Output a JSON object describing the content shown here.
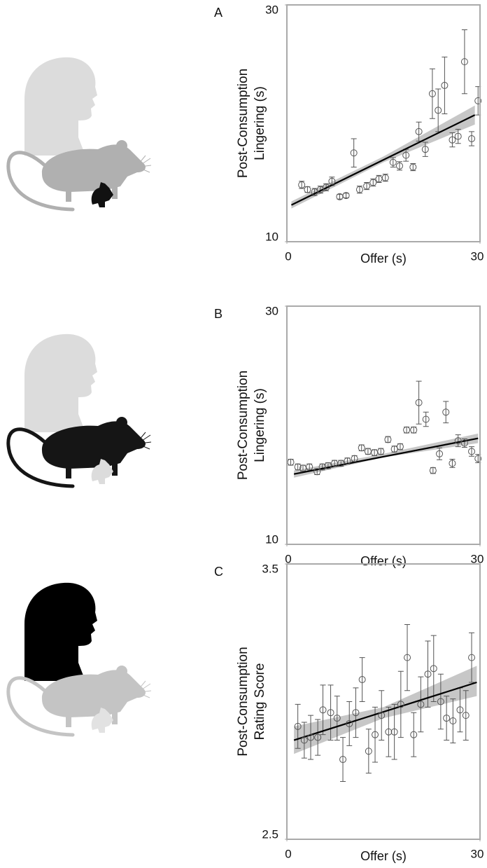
{
  "chart_data": [
    {
      "type": "scatter",
      "panel": "A",
      "ylabel": [
        "Post-Consumption",
        "Lingering (s)"
      ],
      "xlabel": "Offer (s)",
      "xlim": [
        0,
        30
      ],
      "xticks": [
        0,
        30
      ],
      "ylim": [
        10,
        30
      ],
      "yticks": [
        10,
        30
      ],
      "x": [
        2.3,
        3.2,
        4.3,
        5.2,
        6.1,
        7.0,
        8.2,
        9.2,
        10.4,
        11.3,
        12.4,
        13.4,
        14.3,
        15.3,
        16.5,
        17.5,
        18.5,
        19.6,
        20.5,
        21.5,
        22.6,
        23.5,
        24.5,
        25.7,
        26.6,
        27.6,
        28.7,
        29.7
      ],
      "values": [
        14.8,
        14.4,
        14.2,
        14.4,
        14.6,
        15.1,
        13.8,
        13.9,
        17.5,
        14.4,
        14.7,
        15.0,
        15.3,
        15.4,
        16.7,
        16.4,
        17.3,
        16.3,
        19.3,
        17.8,
        22.5,
        21.1,
        23.2,
        18.6,
        18.9,
        25.2,
        18.7,
        21.9
      ],
      "errors": [
        0.3,
        0.24,
        0.3,
        0.3,
        0.3,
        0.36,
        0.2,
        0.2,
        1.2,
        0.3,
        0.3,
        0.3,
        0.3,
        0.3,
        0.4,
        0.36,
        0.5,
        0.3,
        0.8,
        0.6,
        2.1,
        1.8,
        2.4,
        0.6,
        0.6,
        2.7,
        0.6,
        1.2
      ],
      "fit": {
        "x": [
          0.7,
          29.2
        ],
        "y": [
          13.1,
          20.7
        ]
      },
      "band": {
        "x": [
          0.7,
          15,
          29.2
        ],
        "lower": [
          12.8,
          16.7,
          19.9
        ],
        "upper": [
          13.4,
          17.2,
          21.5
        ]
      },
      "color": "#555555",
      "fit_color": "#000000",
      "band_color": "#bdbdbd"
    },
    {
      "type": "scatter",
      "panel": "B",
      "ylabel": [
        "Post-Consumption",
        "Lingering (s)"
      ],
      "xlabel": "Offer (s)",
      "xlim": [
        0,
        30
      ],
      "xticks": [
        0,
        30
      ],
      "ylim": [
        10,
        30
      ],
      "yticks": [
        10,
        30
      ],
      "x": [
        0.6,
        1.7,
        2.5,
        3.5,
        4.7,
        5.5,
        6.4,
        7.4,
        8.4,
        9.4,
        10.5,
        11.6,
        12.6,
        13.6,
        14.6,
        15.7,
        16.7,
        17.6,
        18.6,
        19.7,
        20.5,
        21.6,
        22.7,
        23.7,
        24.7,
        25.7,
        26.6,
        27.6,
        28.7,
        29.7
      ],
      "values": [
        16.9,
        16.5,
        16.4,
        16.5,
        16.1,
        16.5,
        16.6,
        16.8,
        16.8,
        17.0,
        17.2,
        18.1,
        17.8,
        17.7,
        17.8,
        18.8,
        18.0,
        18.2,
        19.6,
        19.6,
        21.9,
        20.5,
        16.2,
        17.6,
        21.1,
        16.8,
        18.7,
        18.5,
        17.8,
        17.2
      ],
      "errors": [
        0.25,
        0.25,
        0.25,
        0.25,
        0.25,
        0.25,
        0.25,
        0.25,
        0.25,
        0.25,
        0.25,
        0.25,
        0.25,
        0.25,
        0.25,
        0.25,
        0.25,
        0.25,
        0.25,
        0.25,
        1.8,
        0.6,
        0.25,
        0.5,
        0.9,
        0.35,
        0.5,
        0.35,
        0.4,
        0.35
      ],
      "fit": {
        "x": [
          1.1,
          29.7
        ],
        "y": [
          15.9,
          18.9
        ]
      },
      "band": {
        "x": [
          1.1,
          15,
          29.7
        ],
        "lower": [
          15.6,
          17.3,
          18.5
        ],
        "upper": [
          16.2,
          17.6,
          19.3
        ]
      },
      "color": "#555555",
      "fit_color": "#000000",
      "band_color": "#bdbdbd"
    },
    {
      "type": "scatter",
      "panel": "C",
      "ylabel": [
        "Post-Consumption",
        "Rating Score"
      ],
      "xlabel": "Offer (s)",
      "xlim": [
        0,
        30
      ],
      "xticks": [
        0,
        30
      ],
      "ylim": [
        2.5,
        3.5
      ],
      "yticks": [
        2.5,
        3.5
      ],
      "x": [
        1.7,
        2.7,
        3.7,
        4.8,
        5.6,
        6.8,
        7.8,
        8.7,
        9.7,
        10.7,
        11.7,
        12.7,
        13.7,
        14.7,
        15.8,
        16.7,
        17.7,
        18.7,
        19.7,
        20.8,
        21.9,
        22.8,
        23.9,
        24.8,
        25.8,
        26.9,
        27.8,
        28.7
      ],
      "values": [
        2.91,
        2.86,
        2.87,
        2.87,
        2.97,
        2.96,
        2.94,
        2.79,
        2.92,
        2.96,
        3.08,
        2.82,
        2.88,
        2.95,
        2.89,
        2.89,
        2.99,
        3.16,
        2.88,
        2.99,
        3.1,
        3.12,
        3.0,
        2.94,
        2.93,
        2.97,
        2.95,
        3.16
      ],
      "errors": [
        0.08,
        0.065,
        0.08,
        0.065,
        0.09,
        0.1,
        0.08,
        0.08,
        0.08,
        0.09,
        0.08,
        0.08,
        0.1,
        0.09,
        0.09,
        0.1,
        0.12,
        0.12,
        0.08,
        0.1,
        0.12,
        0.12,
        0.1,
        0.08,
        0.08,
        0.08,
        0.09,
        0.09
      ],
      "fit": {
        "x": [
          1.1,
          29.5
        ],
        "y": [
          2.86,
          3.07
        ]
      },
      "band": {
        "x": [
          1.1,
          15,
          29.5
        ],
        "lower": [
          2.81,
          2.94,
          3.02
        ],
        "upper": [
          2.91,
          2.98,
          3.13
        ]
      },
      "color": "#555555",
      "fit_color": "#000000",
      "band_color": "#bdbdbd"
    }
  ]
}
